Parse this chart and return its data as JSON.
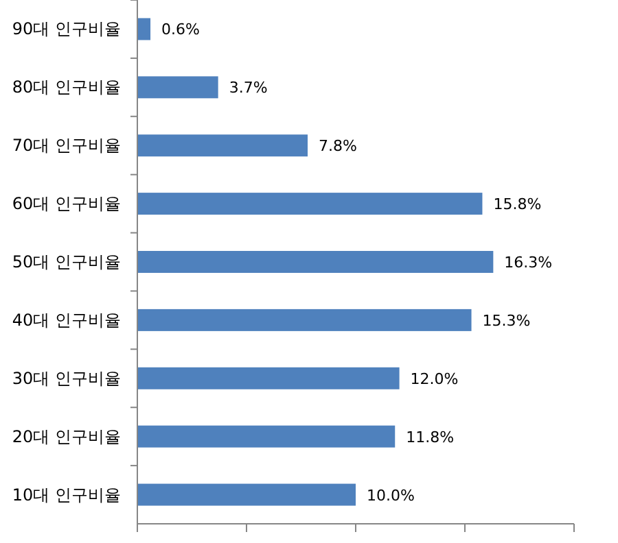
{
  "chart_data": {
    "type": "bar",
    "orientation": "horizontal",
    "categories": [
      "90대 인구비율",
      "80대 인구비율",
      "70대 인구비율",
      "60대 인구비율",
      "50대 인구비율",
      "40대 인구비율",
      "30대 인구비율",
      "20대 인구비율",
      "10대 인구비율"
    ],
    "values": [
      0.6,
      3.7,
      7.8,
      15.8,
      16.3,
      15.3,
      12.0,
      11.8,
      10.0
    ],
    "value_labels": [
      "0.6%",
      "3.7%",
      "7.8%",
      "15.8%",
      "16.3%",
      "15.3%",
      "12.0%",
      "11.8%",
      "10.0%"
    ],
    "color": "#4f81bd",
    "xlim": [
      0,
      20
    ],
    "xticks": [
      {
        "value": 0,
        "label": null
      },
      {
        "value": 5,
        "label": null
      },
      {
        "value": 10,
        "label": null
      },
      {
        "value": 15,
        "label": null
      },
      {
        "value": 20,
        "label": null
      }
    ],
    "tick_labels": "y",
    "grid": false
  }
}
